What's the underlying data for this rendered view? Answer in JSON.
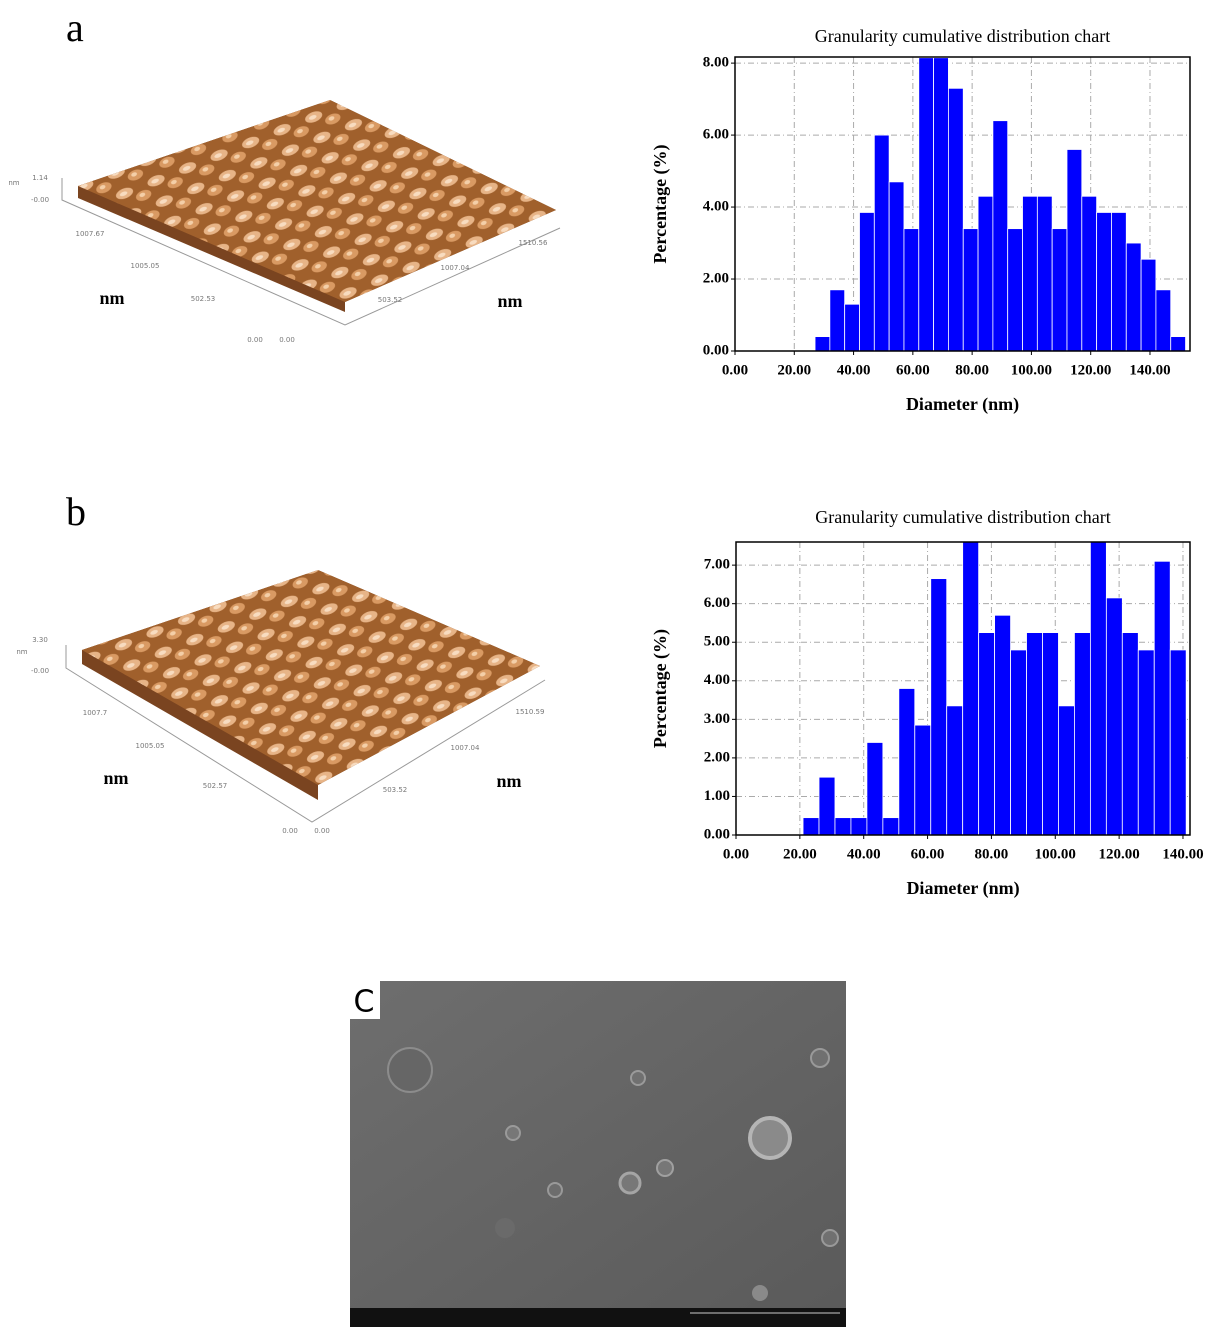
{
  "panels": [
    {
      "label": "a",
      "axis_labels": [
        "nm",
        "nm"
      ],
      "scale_labels": [
        "nm",
        "1.14",
        "-0.00",
        "1007.67",
        "1005.05",
        "502.53",
        "0.00",
        "0.00",
        "503.52",
        "1007.04",
        "1510.56"
      ]
    },
    {
      "label": "b",
      "axis_labels": [
        "nm",
        "nm"
      ],
      "scale_labels": [
        "nm",
        "3.30",
        "-0.00",
        "1007.7",
        "1005.05",
        "502.57",
        "0.00",
        "0.00",
        "503.52",
        "1007.04",
        "1510.59"
      ]
    }
  ],
  "sem": {
    "label": "C"
  },
  "chart_data": [
    {
      "type": "histogram",
      "title": "Granularity cumulative distribution chart",
      "x_label": "Diameter (nm)",
      "y_label": "Percentage (%)",
      "bins": [
        27,
        32,
        37,
        42,
        47,
        52,
        57,
        62,
        67,
        72,
        77,
        82,
        87,
        92,
        97,
        102,
        107,
        112,
        117,
        122,
        127,
        132,
        137,
        142,
        147,
        152
      ],
      "values": [
        0.4,
        1.7,
        1.3,
        3.85,
        6.0,
        4.7,
        3.4,
        8.15,
        8.15,
        7.3,
        3.4,
        4.3,
        6.4,
        3.4,
        4.3,
        4.3,
        3.4,
        5.6,
        4.3,
        3.85,
        3.85,
        3.0,
        2.55,
        1.7,
        0.4
      ],
      "color": "#0000ff",
      "grid": true,
      "xlim": [
        0,
        153.5
      ],
      "ylim": [
        0,
        8.17
      ],
      "xticks": [
        {
          "value": 0,
          "label": "0.00"
        },
        {
          "value": 20,
          "label": "20.00"
        },
        {
          "value": 40,
          "label": "40.00"
        },
        {
          "value": 60,
          "label": "60.00"
        },
        {
          "value": 80,
          "label": "80.00"
        },
        {
          "value": 100,
          "label": "100.00"
        },
        {
          "value": 120,
          "label": "120.00"
        },
        {
          "value": 140,
          "label": "140.00"
        }
      ],
      "yticks": [
        {
          "value": 0,
          "label": "0.00"
        },
        {
          "value": 2,
          "label": "2.00"
        },
        {
          "value": 4,
          "label": "4.00"
        },
        {
          "value": 6,
          "label": "6.00"
        },
        {
          "value": 8,
          "label": "8.00"
        }
      ]
    },
    {
      "type": "histogram",
      "title": "Granularity cumulative distribution chart",
      "x_label": "Diameter (nm)",
      "y_label": "Percentage (%)",
      "bins": [
        21,
        26,
        31,
        36,
        41,
        46,
        51,
        56,
        61,
        66,
        71,
        76,
        81,
        86,
        91,
        96,
        101,
        106,
        111,
        116,
        121,
        126,
        131,
        136,
        141
      ],
      "values": [
        0.45,
        1.5,
        0.45,
        0.45,
        2.4,
        0.45,
        3.8,
        2.85,
        6.65,
        3.35,
        7.6,
        5.25,
        5.7,
        4.8,
        5.25,
        5.25,
        3.35,
        5.25,
        7.6,
        6.15,
        5.25,
        4.8,
        7.1,
        4.8
      ],
      "color": "#0000ff",
      "grid": true,
      "xlim": [
        0,
        142.2
      ],
      "ylim": [
        0,
        7.6
      ],
      "xticks": [
        {
          "value": 0,
          "label": "0.00"
        },
        {
          "value": 20,
          "label": "20.00"
        },
        {
          "value": 40,
          "label": "40.00"
        },
        {
          "value": 60,
          "label": "60.00"
        },
        {
          "value": 80,
          "label": "80.00"
        },
        {
          "value": 100,
          "label": "100.00"
        },
        {
          "value": 120,
          "label": "120.00"
        },
        {
          "value": 140,
          "label": "140.00"
        }
      ],
      "yticks": [
        {
          "value": 0,
          "label": "0.00"
        },
        {
          "value": 1,
          "label": "1.00"
        },
        {
          "value": 2,
          "label": "2.00"
        },
        {
          "value": 3,
          "label": "3.00"
        },
        {
          "value": 4,
          "label": "4.00"
        },
        {
          "value": 5,
          "label": "5.00"
        },
        {
          "value": 6,
          "label": "6.00"
        },
        {
          "value": 7,
          "label": "7.00"
        }
      ]
    }
  ]
}
